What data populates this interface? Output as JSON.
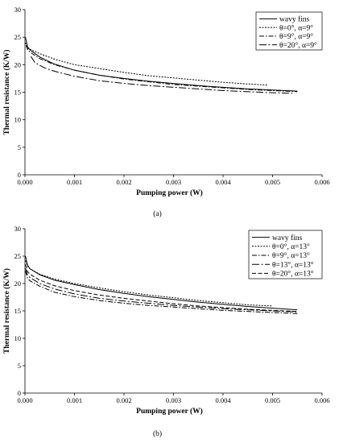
{
  "chart_data": [
    {
      "type": "line",
      "panel_label": "(a)",
      "xlabel": "Pumping power (W)",
      "ylabel": "Thermal resistance (K/W)",
      "xlim": [
        0,
        0.006
      ],
      "ylim": [
        0,
        30
      ],
      "xticks": [
        "0.000",
        "0.001",
        "0.002",
        "0.003",
        "0.004",
        "0.005",
        "0.006"
      ],
      "yticks": [
        "0",
        "5",
        "10",
        "15",
        "20",
        "25",
        "30"
      ],
      "grid": false,
      "legend_position": "top-right",
      "series": [
        {
          "name": "wavy fins",
          "dash": "solid",
          "x": [
            1e-05,
            5e-05,
            0.0001,
            0.0003,
            0.0006,
            0.001,
            0.0015,
            0.002,
            0.0025,
            0.003,
            0.0035,
            0.004,
            0.0045,
            0.005,
            0.0055
          ],
          "y": [
            25.0,
            23.3,
            22.7,
            21.4,
            20.1,
            19.0,
            18.1,
            17.5,
            17.0,
            16.6,
            16.2,
            15.9,
            15.6,
            15.4,
            15.2
          ]
        },
        {
          "name": "θ=0°, α=9°",
          "dash": "dot",
          "x": [
            1e-05,
            5e-05,
            0.0001,
            0.0003,
            0.0006,
            0.001,
            0.0015,
            0.002,
            0.0025,
            0.003,
            0.0035,
            0.004,
            0.0045,
            0.0049
          ],
          "y": [
            24.0,
            23.0,
            22.8,
            22.0,
            21.0,
            20.0,
            19.3,
            18.6,
            18.0,
            17.6,
            17.2,
            16.8,
            16.5,
            16.3
          ]
        },
        {
          "name": "θ=9°, α=9°",
          "dash": "dashdot",
          "x": [
            2e-05,
            5e-05,
            0.0001,
            0.0003,
            0.0006,
            0.001,
            0.0015,
            0.002,
            0.0025,
            0.003,
            0.0035,
            0.004,
            0.0045,
            0.005,
            0.0055
          ],
          "y": [
            23.5,
            22.8,
            22.3,
            21.1,
            20.0,
            19.0,
            18.1,
            17.4,
            16.9,
            16.4,
            16.1,
            15.8,
            15.5,
            15.3,
            15.1
          ]
        },
        {
          "name": "θ=20°, α=9°",
          "dash": "dashdotlong",
          "x": [
            0.00012,
            0.0002,
            0.0004,
            0.0006,
            0.001,
            0.0015,
            0.002,
            0.0025,
            0.003,
            0.0035,
            0.004,
            0.0045,
            0.005,
            0.0054
          ],
          "y": [
            21.5,
            20.4,
            19.4,
            18.8,
            17.9,
            17.1,
            16.6,
            16.2,
            15.9,
            15.6,
            15.3,
            15.1,
            14.9,
            14.8
          ]
        }
      ]
    },
    {
      "type": "line",
      "panel_label": "(b)",
      "xlabel": "Pumping power (W)",
      "ylabel": "Thermal resistance (K/W)",
      "xlim": [
        0,
        0.006
      ],
      "ylim": [
        0,
        30
      ],
      "xticks": [
        "0.000",
        "0.001",
        "0.002",
        "0.003",
        "0.004",
        "0.005",
        "0.006"
      ],
      "yticks": [
        "0",
        "5",
        "10",
        "15",
        "20",
        "25",
        "30"
      ],
      "grid": false,
      "legend_position": "top-right",
      "series": [
        {
          "name": "wavy fins",
          "dash": "solid",
          "x": [
            1e-05,
            5e-05,
            0.0001,
            0.0003,
            0.0006,
            0.001,
            0.0015,
            0.002,
            0.0025,
            0.003,
            0.0035,
            0.004,
            0.0045,
            0.005,
            0.0055
          ],
          "y": [
            25.0,
            23.4,
            22.7,
            21.6,
            20.6,
            19.8,
            18.9,
            18.2,
            17.6,
            17.1,
            16.6,
            16.2,
            15.8,
            15.5,
            15.2
          ]
        },
        {
          "name": "θ=0°, α=13°",
          "dash": "dot",
          "x": [
            1e-05,
            5e-05,
            0.0001,
            0.0003,
            0.0006,
            0.001,
            0.0015,
            0.002,
            0.0025,
            0.003,
            0.0035,
            0.004,
            0.0045,
            0.005
          ],
          "y": [
            24.2,
            23.2,
            22.7,
            21.7,
            20.8,
            20.0,
            19.2,
            18.5,
            17.9,
            17.4,
            16.9,
            16.5,
            16.1,
            15.9
          ]
        },
        {
          "name": "θ=9°, α=13°",
          "dash": "dashdot",
          "x": [
            1e-05,
            5e-05,
            0.0001,
            0.0003,
            0.0006,
            0.001,
            0.0015,
            0.002,
            0.0025,
            0.003,
            0.0035,
            0.004,
            0.0045,
            0.005,
            0.0055
          ],
          "y": [
            22.3,
            21.0,
            20.5,
            19.5,
            18.4,
            17.6,
            16.9,
            16.4,
            16.0,
            15.7,
            15.4,
            15.1,
            14.9,
            14.7,
            14.5
          ]
        },
        {
          "name": "θ=13°, α=13°",
          "dash": "dashdotlong",
          "x": [
            1e-05,
            5e-05,
            0.0001,
            0.0003,
            0.0006,
            0.001,
            0.0015,
            0.002,
            0.0025,
            0.003,
            0.0035,
            0.004,
            0.0045,
            0.005,
            0.0055
          ],
          "y": [
            22.8,
            21.6,
            21.1,
            20.0,
            19.0,
            18.1,
            17.3,
            16.8,
            16.4,
            16.0,
            15.7,
            15.4,
            15.2,
            15.0,
            14.8
          ]
        },
        {
          "name": "θ=20°, α=13°",
          "dash": "dash",
          "x": [
            1e-05,
            5e-05,
            0.0001,
            0.0003,
            0.0006,
            0.001,
            0.0015,
            0.002,
            0.0025,
            0.003,
            0.0035,
            0.004,
            0.0045,
            0.005,
            0.0055
          ],
          "y": [
            23.5,
            22.2,
            21.7,
            20.6,
            19.6,
            18.7,
            17.9,
            17.3,
            16.8,
            16.3,
            15.9,
            15.6,
            15.3,
            15.1,
            14.9
          ]
        }
      ]
    }
  ]
}
